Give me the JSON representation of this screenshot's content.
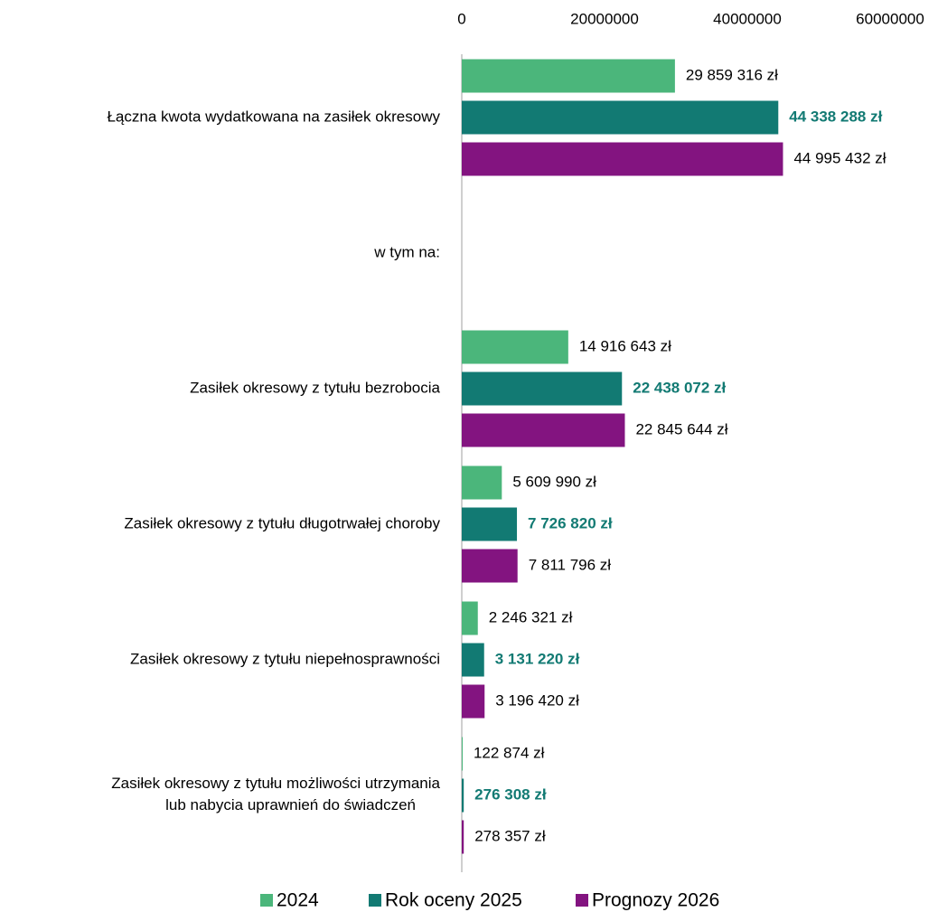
{
  "chart_data": {
    "type": "barh",
    "categories": [
      "Łączna kwota wydatkowana na zasiłek okresowy",
      "w tym na:",
      "Zasiłek okresowy z tytułu bezrobocia",
      "Zasiłek okresowy z tytułu długotrwałej choroby",
      "Zasiłek okresowy z tytułu niepełnosprawności",
      "Zasiłek okresowy z tytułu możliwości utrzymania\nlub nabycia uprawnień do świadczeń"
    ],
    "series": [
      {
        "name": "2024",
        "color": "#4bb67b",
        "values": [
          29859316,
          null,
          14916643,
          5609990,
          2246321,
          122874
        ],
        "value_labels": [
          "29 859 316 zł",
          null,
          "14 916 643 zł",
          "5 609 990 zł",
          "2 246 321 zł",
          "122 874 zł"
        ]
      },
      {
        "name": "Rok oceny 2025",
        "color": "#127a73",
        "values": [
          44338288,
          null,
          22438072,
          7726820,
          3131220,
          276308
        ],
        "value_labels": [
          "44 338 288 zł",
          null,
          "22 438 072 zł",
          "7 726 820 zł",
          "3 131 220 zł",
          "276 308 zł"
        ]
      },
      {
        "name": "Prognozy 2026",
        "color": "#831480",
        "values": [
          44995432,
          null,
          22845644,
          7811796,
          3196420,
          278357
        ],
        "value_labels": [
          "44 995 432 zł",
          null,
          "22 845 644 zł",
          "7 811 796 zł",
          "3 196 420 zł",
          "278 357 zł"
        ]
      }
    ],
    "xlim": [
      0,
      60000000
    ],
    "xticks": [
      0,
      20000000,
      40000000,
      60000000
    ],
    "legend": "bottom"
  }
}
